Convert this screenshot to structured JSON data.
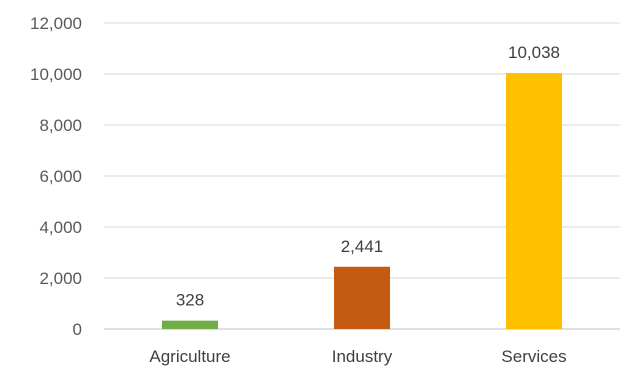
{
  "chart_data": {
    "type": "bar",
    "categories": [
      "Agriculture",
      "Industry",
      "Services"
    ],
    "values": [
      328,
      2441,
      10038
    ],
    "data_labels": [
      "328",
      "2,441",
      "10,038"
    ],
    "bar_colors": [
      "#70ad47",
      "#c55a11",
      "#ffc000"
    ],
    "title": "",
    "xlabel": "",
    "ylabel": "",
    "ylim": [
      0,
      12000
    ],
    "yticks": [
      0,
      2000,
      4000,
      6000,
      8000,
      10000,
      12000
    ],
    "ytick_labels": [
      "0",
      "2,000",
      "4,000",
      "6,000",
      "8,000",
      "10,000",
      "12,000"
    ],
    "grid": true,
    "legend": "none"
  }
}
